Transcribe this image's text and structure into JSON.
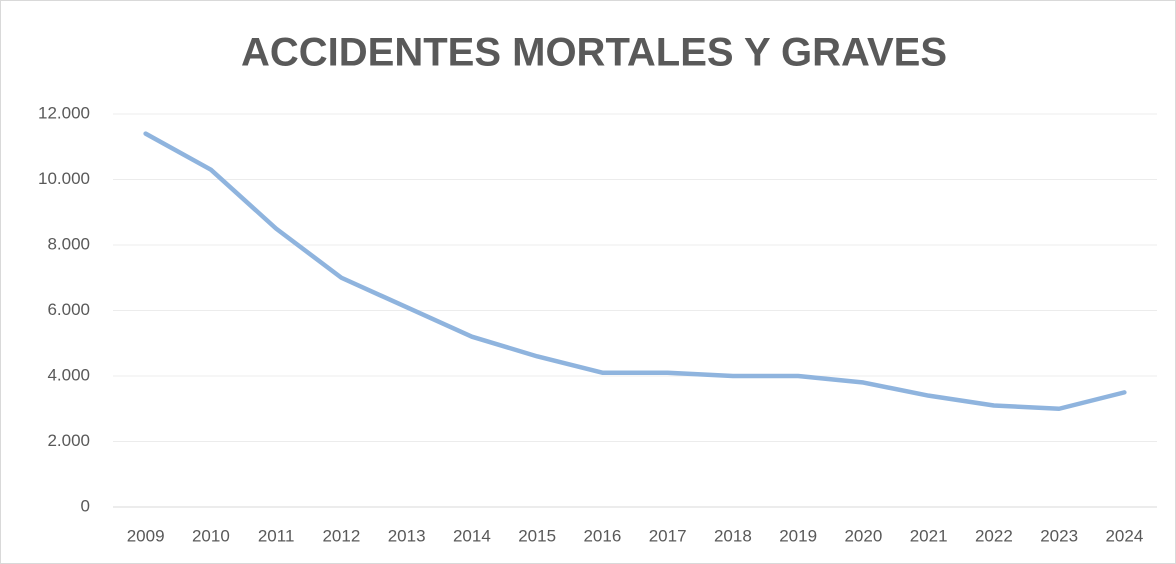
{
  "chart_data": {
    "type": "line",
    "title": "ACCIDENTES MORTALES Y GRAVES",
    "categories": [
      "2009",
      "2010",
      "2011",
      "2012",
      "2013",
      "2014",
      "2015",
      "2016",
      "2017",
      "2018",
      "2019",
      "2020",
      "2021",
      "2022",
      "2023",
      "2024"
    ],
    "series": [
      {
        "name": "Accidentes mortales y graves",
        "color": "#8fb4de",
        "values": [
          11400,
          10300,
          8500,
          7000,
          6100,
          5200,
          4600,
          4100,
          4100,
          4000,
          4000,
          3800,
          3400,
          3100,
          3000,
          3500
        ]
      }
    ],
    "ylim": [
      0,
      12000
    ],
    "yticks": [
      0,
      {
        "value": 2000,
        "label": "2.000"
      },
      {
        "value": 4000,
        "label": "4.000"
      },
      {
        "value": 6000,
        "label": "6.000"
      },
      {
        "value": 8000,
        "label": "8.000"
      },
      {
        "value": 10000,
        "label": "10.000"
      },
      {
        "value": 12000,
        "label": "12.000"
      }
    ],
    "grid": true
  }
}
